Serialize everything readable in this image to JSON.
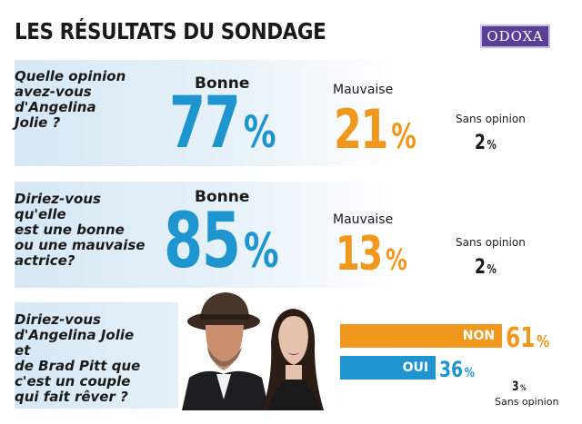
{
  "header": {
    "title": "LES RÉSULTATS DU SONDAGE",
    "logo_text": "ODOXA"
  },
  "colors": {
    "blue": "#1f95cf",
    "orange": "#f0981d",
    "panel": "#d6e8f5",
    "logo": "#5a3f96"
  },
  "chart_data": [
    {
      "type": "table",
      "question": "Quelle opinion avez-vous d'Angelina Jolie ?",
      "categories": [
        "Bonne",
        "Mauvaise",
        "Sans opinion"
      ],
      "values": [
        77,
        21,
        2
      ],
      "unit": "%"
    },
    {
      "type": "table",
      "question": "Diriez-vous qu'elle est une bonne ou une mauvaise actrice?",
      "categories": [
        "Bonne",
        "Mauvaise",
        "Sans opinion"
      ],
      "values": [
        85,
        13,
        2
      ],
      "unit": "%"
    },
    {
      "type": "bar",
      "question": "Diriez-vous d'Angelina Jolie et de Brad Pitt que c'est un couple qui fait rêver ?",
      "categories": [
        "NON",
        "OUI"
      ],
      "values": [
        61,
        36
      ],
      "other": {
        "label": "Sans opinion",
        "value": 3
      },
      "unit": "%"
    }
  ],
  "labels": {
    "q1": {
      "lines": [
        "Quelle opinion",
        "avez-vous",
        "d'Angelina",
        "Jolie ?"
      ],
      "bonne": "Bonne",
      "bonne_val": "77",
      "mauvaise": "Mauvaise",
      "mauvaise_val": "21",
      "sans": "Sans opinion",
      "sans_val": "2"
    },
    "q2": {
      "lines": [
        "Diriez-vous  qu'elle",
        "est une bonne",
        "ou une mauvaise",
        "actrice?"
      ],
      "bonne": "Bonne",
      "bonne_val": "85",
      "mauvaise": "Mauvaise",
      "mauvaise_val": "13",
      "sans": "Sans opinion",
      "sans_val": "2"
    },
    "q3": {
      "lines": [
        "Diriez-vous",
        "d'Angelina Jolie et",
        "de Brad Pitt que",
        "c'est un couple",
        "qui fait rêver ?"
      ],
      "non": "NON",
      "non_val": "61",
      "oui": "OUI",
      "oui_val": "36",
      "sans": "Sans opinion",
      "sans_val": "3"
    },
    "pct": "%"
  }
}
